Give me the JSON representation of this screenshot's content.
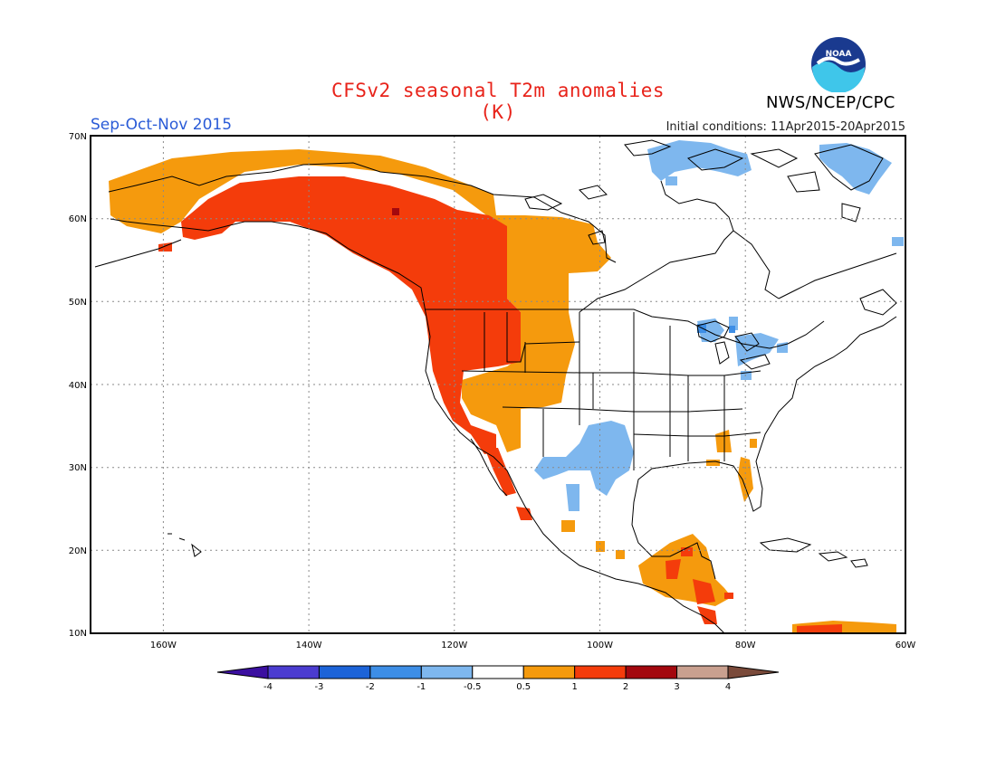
{
  "header": {
    "title": "CFSv2 seasonal T2m anomalies (K)",
    "org": "NWS/NCEP/CPC",
    "season": "Sep-Oct-Nov 2015",
    "initial_conditions": "Initial conditions: 11Apr2015-20Apr2015",
    "logo_text": "NOAA"
  },
  "map": {
    "lat_labels": [
      "70N",
      "60N",
      "50N",
      "40N",
      "30N",
      "20N",
      "10N"
    ],
    "lon_labels": [
      "160W",
      "140W",
      "120W",
      "100W",
      "80W",
      "60W"
    ],
    "lon_range": [
      -172,
      -60
    ],
    "lat_range": [
      10,
      70
    ]
  },
  "colorbar": {
    "tick_labels": [
      "-4",
      "-3",
      "-2",
      "-1",
      "-0.5",
      "0.5",
      "1",
      "2",
      "3",
      "4"
    ],
    "colors": [
      "#3b0fa0",
      "#4b3cd0",
      "#1c63d8",
      "#3d8ee6",
      "#7eb7ee",
      "#ffffff",
      "#f59a0d",
      "#f43c0b",
      "#a3080e",
      "#c9a08f",
      "#7a4a3a"
    ]
  }
}
